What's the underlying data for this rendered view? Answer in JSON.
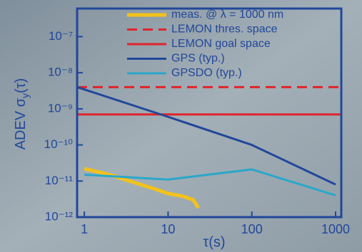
{
  "chart_data": {
    "type": "line",
    "xlabel": "τ(s)",
    "ylabel_parts": [
      "ADEV σ",
      "y",
      "(τ)"
    ],
    "xscale": "log",
    "yscale": "log",
    "xlim": [
      0.82,
      1170
    ],
    "ylim": [
      1e-12,
      6e-07
    ],
    "xticks": [
      1,
      10,
      100,
      1000
    ],
    "yticks": [
      {
        "value": 1e-12,
        "label": "10⁻¹²"
      },
      {
        "value": 1e-11,
        "label": "10⁻¹¹"
      },
      {
        "value": 1e-10,
        "label": "10⁻¹⁰"
      },
      {
        "value": 1e-09,
        "label": "10⁻⁹"
      },
      {
        "value": 1e-08,
        "label": "10⁻⁸"
      },
      {
        "value": 1e-07,
        "label": "10⁻⁷"
      }
    ],
    "legend": "upper right",
    "series": [
      {
        "name": "meas. @ λ = 1000 nm",
        "color": "#f2c21b",
        "linestyle": "solid",
        "width": 5,
        "x": [
          1,
          2,
          4,
          7,
          10,
          15,
          20,
          23
        ],
        "values": [
          2.2e-11,
          1.5e-11,
          9e-12,
          6e-12,
          4.5e-12,
          3.8e-12,
          3e-12,
          1.8e-12
        ]
      },
      {
        "name": "LEMON thres. space",
        "color": "#e0242b",
        "linestyle": "dashed",
        "width": 3,
        "x": [
          0.82,
          1170
        ],
        "values": [
          4e-09,
          4e-09
        ]
      },
      {
        "name": "LEMON goal space",
        "color": "#e0242b",
        "linestyle": "solid",
        "width": 3,
        "x": [
          0.82,
          1170
        ],
        "values": [
          7e-10,
          7e-10
        ]
      },
      {
        "name": "GPS (typ.)",
        "color": "#22479a",
        "linestyle": "solid",
        "width": 3,
        "x": [
          0.82,
          10,
          100,
          1000
        ],
        "values": [
          4e-09,
          6e-10,
          1e-10,
          8e-12
        ]
      },
      {
        "name": "GPSDO (typ.)",
        "color": "#2aa7c9",
        "linestyle": "solid",
        "width": 3,
        "x": [
          1,
          10,
          100,
          1000
        ],
        "values": [
          1.5e-11,
          1.1e-11,
          2.1e-11,
          4e-12
        ]
      }
    ]
  }
}
